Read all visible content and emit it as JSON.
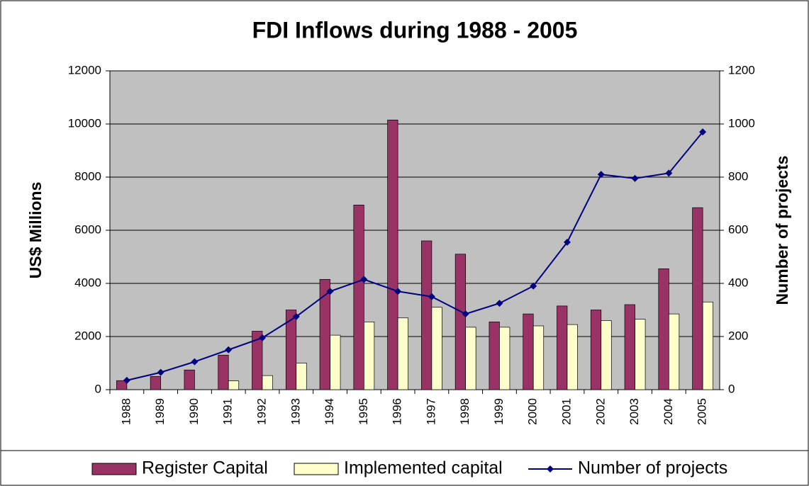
{
  "chart_data": {
    "type": "bar-line",
    "title": "FDI Inflows during 1988 - 2005",
    "y_label": "US$ Millions",
    "y2_label": "Number of projects",
    "categories": [
      "1988",
      "1989",
      "1990",
      "1991",
      "1992",
      "1993",
      "1994",
      "1995",
      "1996",
      "1997",
      "1998",
      "1999",
      "2000",
      "2001",
      "2002",
      "2003",
      "2004",
      "2005"
    ],
    "series": [
      {
        "name": "Register Capital",
        "type": "bar",
        "color": "#993366",
        "values": [
          340,
          500,
          740,
          1300,
          2200,
          3000,
          4150,
          6950,
          10150,
          5600,
          5100,
          2550,
          2850,
          3150,
          3000,
          3200,
          4550,
          6850
        ]
      },
      {
        "name": "Implemented capital",
        "type": "bar",
        "color": "#ffffcc",
        "values": [
          null,
          null,
          null,
          330,
          530,
          1000,
          2050,
          2550,
          2700,
          3100,
          2350,
          2350,
          2400,
          2450,
          2600,
          2650,
          2850,
          3300
        ]
      },
      {
        "name": "Number of projects",
        "type": "line",
        "axis": "y2",
        "color": "#000080",
        "values": [
          35,
          65,
          105,
          150,
          195,
          275,
          370,
          415,
          370,
          350,
          285,
          325,
          390,
          555,
          810,
          795,
          815,
          970
        ]
      }
    ],
    "ylim": [
      0,
      12000
    ],
    "yticks": [
      0,
      2000,
      4000,
      6000,
      8000,
      10000,
      12000
    ],
    "y2lim": [
      0,
      1200
    ],
    "y2ticks": [
      0,
      200,
      400,
      600,
      800,
      1000,
      1200
    ],
    "grid": true,
    "legend": "bottom"
  }
}
